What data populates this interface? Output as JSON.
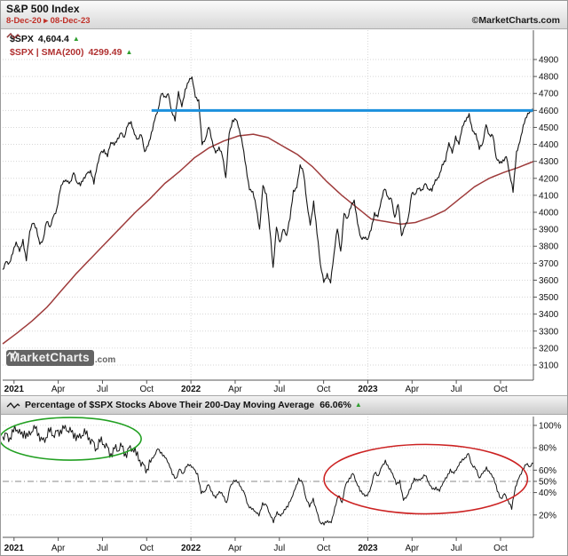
{
  "header": {
    "title": "S&P 500 Index",
    "date_range": "8-Dec-20 ▸ 08-Dec-23",
    "copyright": "©MarketCharts.com"
  },
  "legend": {
    "spx": {
      "label": "$SPX",
      "value": "4,604.4",
      "direction": "up"
    },
    "sma": {
      "label": "$SPX | SMA(200)",
      "value": "4299.49",
      "direction": "up"
    }
  },
  "watermark": {
    "brand": "MarketCharts",
    "suffix": ".com"
  },
  "panel2_header": {
    "label": "Percentage of $SPX Stocks Above Their 200-Day Moving Average",
    "value": "66.06%",
    "direction": "up"
  },
  "icons": {
    "up_triangle": "▲"
  },
  "colors": {
    "spx_line": "#151515",
    "sma_line": "#9e3b3b",
    "resistance_blue": "#1b90dd",
    "up_green": "#2f9e2f",
    "annotation_green": "#22a022",
    "annotation_red": "#cc2222",
    "date_red": "#c03028"
  },
  "chart_data": [
    {
      "type": "line",
      "title": "S&P 500 Index price with 200-day SMA",
      "x_unit": "months since 8-Dec-2020",
      "x_range": [
        0,
        36
      ],
      "y_axis": {
        "min": 3100,
        "max": 4900,
        "step": 100
      },
      "grid": true,
      "legend_position": "top-left",
      "x_ticks": [
        {
          "t": 0.77,
          "label": "2021",
          "bold": true
        },
        {
          "t": 3.77,
          "label": "Apr",
          "bold": false
        },
        {
          "t": 6.77,
          "label": "Jul",
          "bold": false
        },
        {
          "t": 9.77,
          "label": "Oct",
          "bold": false
        },
        {
          "t": 12.77,
          "label": "2022",
          "bold": true
        },
        {
          "t": 15.77,
          "label": "Apr",
          "bold": false
        },
        {
          "t": 18.77,
          "label": "Jul",
          "bold": false
        },
        {
          "t": 21.77,
          "label": "Oct",
          "bold": false
        },
        {
          "t": 24.77,
          "label": "2023",
          "bold": true
        },
        {
          "t": 27.77,
          "label": "Apr",
          "bold": false
        },
        {
          "t": 30.77,
          "label": "Jul",
          "bold": false
        },
        {
          "t": 33.77,
          "label": "Oct",
          "bold": false
        }
      ],
      "series": [
        {
          "name": "$SPX",
          "color": "#151515",
          "last_value": 4604.4,
          "values": [
            3663,
            3709,
            3703,
            3756,
            3825,
            3768,
            3841,
            3714,
            3887,
            3935,
            3907,
            3811,
            3842,
            3943,
            3913,
            3975,
            4020,
            4129,
            4185,
            4180,
            4181,
            4233,
            4174,
            4156,
            4204,
            4230,
            4247,
            4166,
            4281,
            4352,
            4370,
            4327,
            4412,
            4395,
            4437,
            4468,
            4442,
            4509,
            4535,
            4459,
            4433,
            4455,
            4357,
            4391,
            4471,
            4545,
            4605,
            4698,
            4683,
            4698,
            4595,
            4538,
            4712,
            4621,
            4726,
            4766,
            4797,
            4677,
            4663,
            4398,
            4432,
            4501,
            4419,
            4349,
            4385,
            4329,
            4204,
            4463,
            4543,
            4546,
            4488,
            4393,
            4272,
            4132,
            4123,
            4024,
            3901,
            4158,
            4109,
            3901,
            3675,
            3912,
            3825,
            3899,
            3863,
            3962,
            4130,
            4145,
            4280,
            4228,
            4058,
            3924,
            4067,
            3873,
            3693,
            3586,
            3640,
            3583,
            3753,
            3901,
            3771,
            3993,
            3965,
            4026,
            4072,
            3934,
            3852,
            3845,
            3840,
            3895,
            3999,
            3973,
            4071,
            4136,
            4090,
            4079,
            3970,
            4046,
            3862,
            3917,
            3971,
            4109,
            4105,
            4138,
            4134,
            4169,
            4136,
            4124,
            4192,
            4205,
            4282,
            4299,
            4410,
            4348,
            4450,
            4399,
            4505,
            4536,
            4582,
            4478,
            4464,
            4370,
            4406,
            4516,
            4457,
            4450,
            4320,
            4288,
            4309,
            4328,
            4224,
            4117,
            4358,
            4415,
            4514,
            4559,
            4595,
            4604.4
          ]
        },
        {
          "name": "$SPX SMA(200)",
          "color": "#9e3b3b",
          "last_value": 4299.49,
          "values": [
            3225,
            3290,
            3360,
            3440,
            3540,
            3640,
            3730,
            3820,
            3910,
            4000,
            4080,
            4170,
            4240,
            4320,
            4380,
            4420,
            4450,
            4460,
            4440,
            4390,
            4340,
            4270,
            4180,
            4100,
            4030,
            3960,
            3945,
            3930,
            3940,
            3970,
            4010,
            4080,
            4150,
            4200,
            4235,
            4265,
            4299.49
          ]
        }
      ],
      "annotations": [
        {
          "type": "hline",
          "y": 4600,
          "x_start": 10.1,
          "x_end": 36,
          "color": "#1b90dd",
          "width": 3
        }
      ]
    },
    {
      "type": "line",
      "title": "Percentage of $SPX Stocks Above Their 200-Day Moving Average",
      "x_unit": "months since 8-Dec-2020",
      "x_range": [
        0,
        36
      ],
      "y_range": [
        0,
        105.5
      ],
      "y_ticks": [
        100,
        80,
        60,
        50,
        40,
        20
      ],
      "reference_line": {
        "y": 50,
        "style": "dash-dot"
      },
      "grid": true,
      "noise_hint": {
        "dense_until_month": 10,
        "amp_early": 5.5,
        "amp_late": 1.8
      },
      "x_ticks": [
        {
          "t": 0.77,
          "label": "2021",
          "bold": true
        },
        {
          "t": 3.77,
          "label": "Apr",
          "bold": false
        },
        {
          "t": 6.77,
          "label": "Jul",
          "bold": false
        },
        {
          "t": 9.77,
          "label": "Oct",
          "bold": false
        },
        {
          "t": 12.77,
          "label": "2022",
          "bold": true
        },
        {
          "t": 15.77,
          "label": "Apr",
          "bold": false
        },
        {
          "t": 18.77,
          "label": "Jul",
          "bold": false
        },
        {
          "t": 21.77,
          "label": "Oct",
          "bold": false
        },
        {
          "t": 24.77,
          "label": "2023",
          "bold": true
        },
        {
          "t": 27.77,
          "label": "Apr",
          "bold": false
        },
        {
          "t": 30.77,
          "label": "Jul",
          "bold": false
        },
        {
          "t": 33.77,
          "label": "Oct",
          "bold": false
        }
      ],
      "series": [
        {
          "name": "% of $SPX stocks above 200-day MA",
          "color": "#151515",
          "last_value": 66.06,
          "values": [
            90,
            93,
            89,
            94,
            96,
            92,
            95,
            90,
            94,
            97,
            93,
            87,
            89,
            94,
            91,
            95,
            96,
            97,
            95,
            94,
            93,
            89,
            91,
            92,
            89,
            86,
            79,
            85,
            83,
            81,
            75,
            79,
            77,
            81,
            75,
            80,
            79,
            73,
            69,
            65,
            61,
            67,
            73,
            79,
            76,
            71,
            66,
            56,
            53,
            61,
            57,
            63,
            65,
            61,
            57,
            39,
            41,
            47,
            41,
            35,
            41,
            37,
            31,
            45,
            51,
            49,
            45,
            39,
            29,
            25,
            23,
            19,
            31,
            29,
            21,
            13,
            23,
            19,
            25,
            27,
            35,
            43,
            53,
            49,
            35,
            27,
            35,
            23,
            13,
            11,
            15,
            13,
            27,
            37,
            31,
            47,
            53,
            57,
            49,
            41,
            39,
            37,
            45,
            57,
            55,
            63,
            69,
            61,
            57,
            47,
            51,
            33,
            37,
            43,
            53,
            51,
            53,
            55,
            49,
            43,
            45,
            41,
            49,
            53,
            61,
            57,
            63,
            67,
            71,
            75,
            65,
            61,
            53,
            57,
            63,
            57,
            53,
            41,
            35,
            39,
            33,
            25,
            45,
            53,
            61,
            65,
            63,
            66.06
          ]
        }
      ],
      "annotations": [
        {
          "type": "ellipse",
          "color": "#22a022",
          "x_center": 4.6,
          "y_center": 88,
          "x_radius": 4.8,
          "y_radius": 19
        },
        {
          "type": "ellipse",
          "color": "#cc2222",
          "x_center": 28.7,
          "y_center": 52,
          "x_radius": 6.9,
          "y_radius": 31
        }
      ]
    }
  ]
}
